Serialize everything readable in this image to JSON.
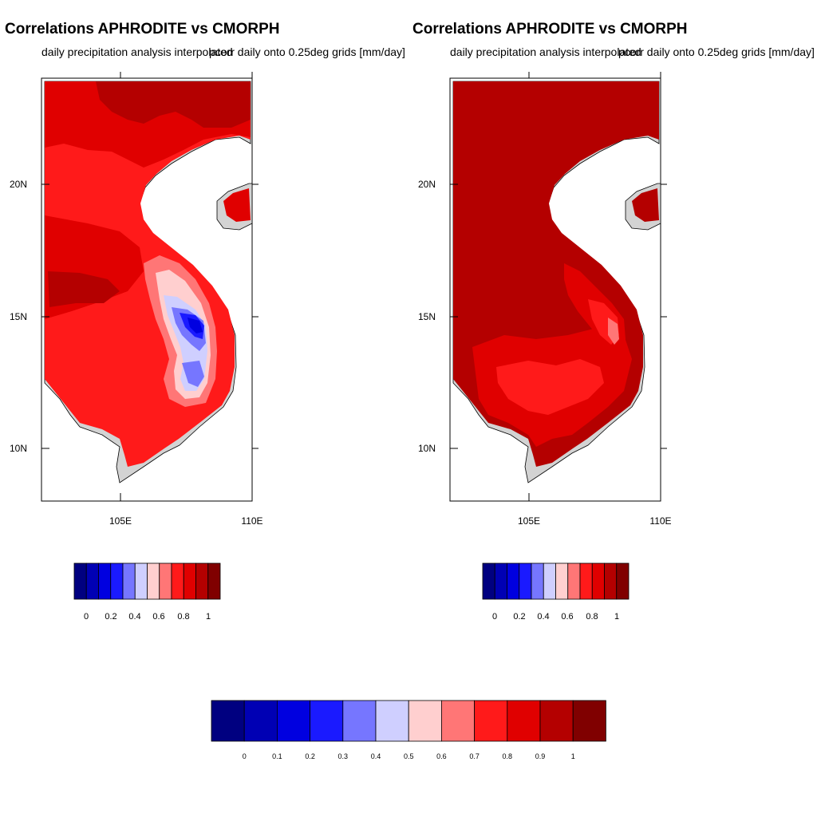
{
  "panels": [
    {
      "title": "Correlations APHRODITE vs CMORPH",
      "subtitle_left": "daily precipitation analysis interpolated",
      "subtitle_right": "onto 0.25deg grids [mm/day]",
      "subtitle_right_prefix": "pcorr daily ",
      "x_ticks": [
        "105E",
        "110E"
      ],
      "y_ticks": [
        "10N",
        "15N",
        "20N"
      ],
      "colorbar_labels": [
        "0",
        "0.2",
        "0.4",
        "0.6",
        "0.8",
        "1"
      ],
      "dominant_level": "0.7-0.9 (red)",
      "notable_feature": "Low/negative correlation pocket (blue) over central highlands near 14-15N, 107-108E"
    },
    {
      "title": "Correlations APHRODITE vs CMORPH",
      "subtitle_left": "daily precipitation analysis interpolated",
      "subtitle_right": "onto 0.25deg grids [mm/day]",
      "subtitle_right_prefix": "pcorr daily ",
      "x_ticks": [
        "105E",
        "110E"
      ],
      "y_ticks": [
        "10N",
        "15N",
        "20N"
      ],
      "colorbar_labels": [
        "0",
        "0.2",
        "0.4",
        "0.6",
        "0.8",
        "1"
      ],
      "dominant_level": "0.9-1 (dark red)",
      "notable_feature": "Mostly high correlation; lighter red patch near 14.5N, 108E"
    }
  ],
  "shared_colorbar": {
    "labels": [
      "0",
      "0.1",
      "0.2",
      "0.3",
      "0.4",
      "0.5",
      "0.6",
      "0.7",
      "0.8",
      "0.9",
      "1"
    ]
  },
  "palette": [
    "#000080",
    "#0000b4",
    "#0000e0",
    "#1a1aff",
    "#7676ff",
    "#cfcfff",
    "#ffcfcf",
    "#ff7676",
    "#ff1a1a",
    "#e00000",
    "#b40000",
    "#800000"
  ],
  "colors": {
    "land_background": "#d3d3d3",
    "left_base": "#ff1a1a",
    "right_base": "#b40000"
  }
}
